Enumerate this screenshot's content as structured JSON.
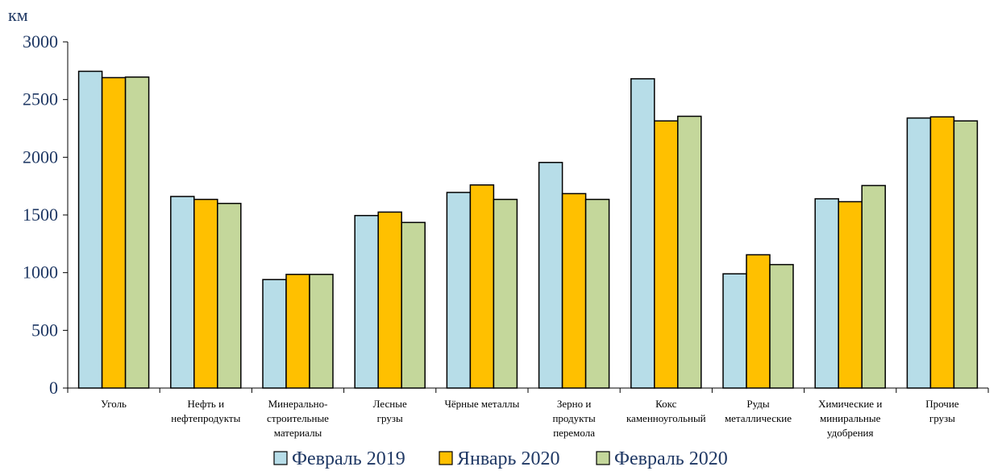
{
  "chart_data": {
    "type": "bar",
    "ylabel": "км",
    "ylim": [
      0,
      3000
    ],
    "yticks": [
      0,
      500,
      1000,
      1500,
      2000,
      2500,
      3000
    ],
    "categories": [
      [
        "Уголь"
      ],
      [
        "Нефть и",
        "нефтепродукты"
      ],
      [
        "Минерально-",
        "строительные",
        "материалы"
      ],
      [
        "Лесные",
        "грузы"
      ],
      [
        "Чёрные металлы"
      ],
      [
        "Зерно и",
        "продукты",
        "перемола"
      ],
      [
        "Кокс",
        "каменноугольный"
      ],
      [
        "Руды",
        "металлические"
      ],
      [
        "Химические и",
        "миниральные",
        "удобрения"
      ],
      [
        "Прочие",
        "грузы"
      ]
    ],
    "series": [
      {
        "name": "Февраль 2019",
        "color": "#b7dde8",
        "values": [
          2745,
          1660,
          940,
          1495,
          1695,
          1955,
          2680,
          990,
          1640,
          2340
        ]
      },
      {
        "name": "Январь 2020",
        "color": "#ffc000",
        "values": [
          2690,
          1635,
          985,
          1525,
          1760,
          1685,
          2315,
          1155,
          1615,
          2350
        ]
      },
      {
        "name": "Февраль 2020",
        "color": "#c4d79b",
        "values": [
          2695,
          1600,
          985,
          1435,
          1635,
          1635,
          2355,
          1070,
          1755,
          2315
        ]
      }
    ],
    "grid": false,
    "legend_position": "bottom"
  }
}
